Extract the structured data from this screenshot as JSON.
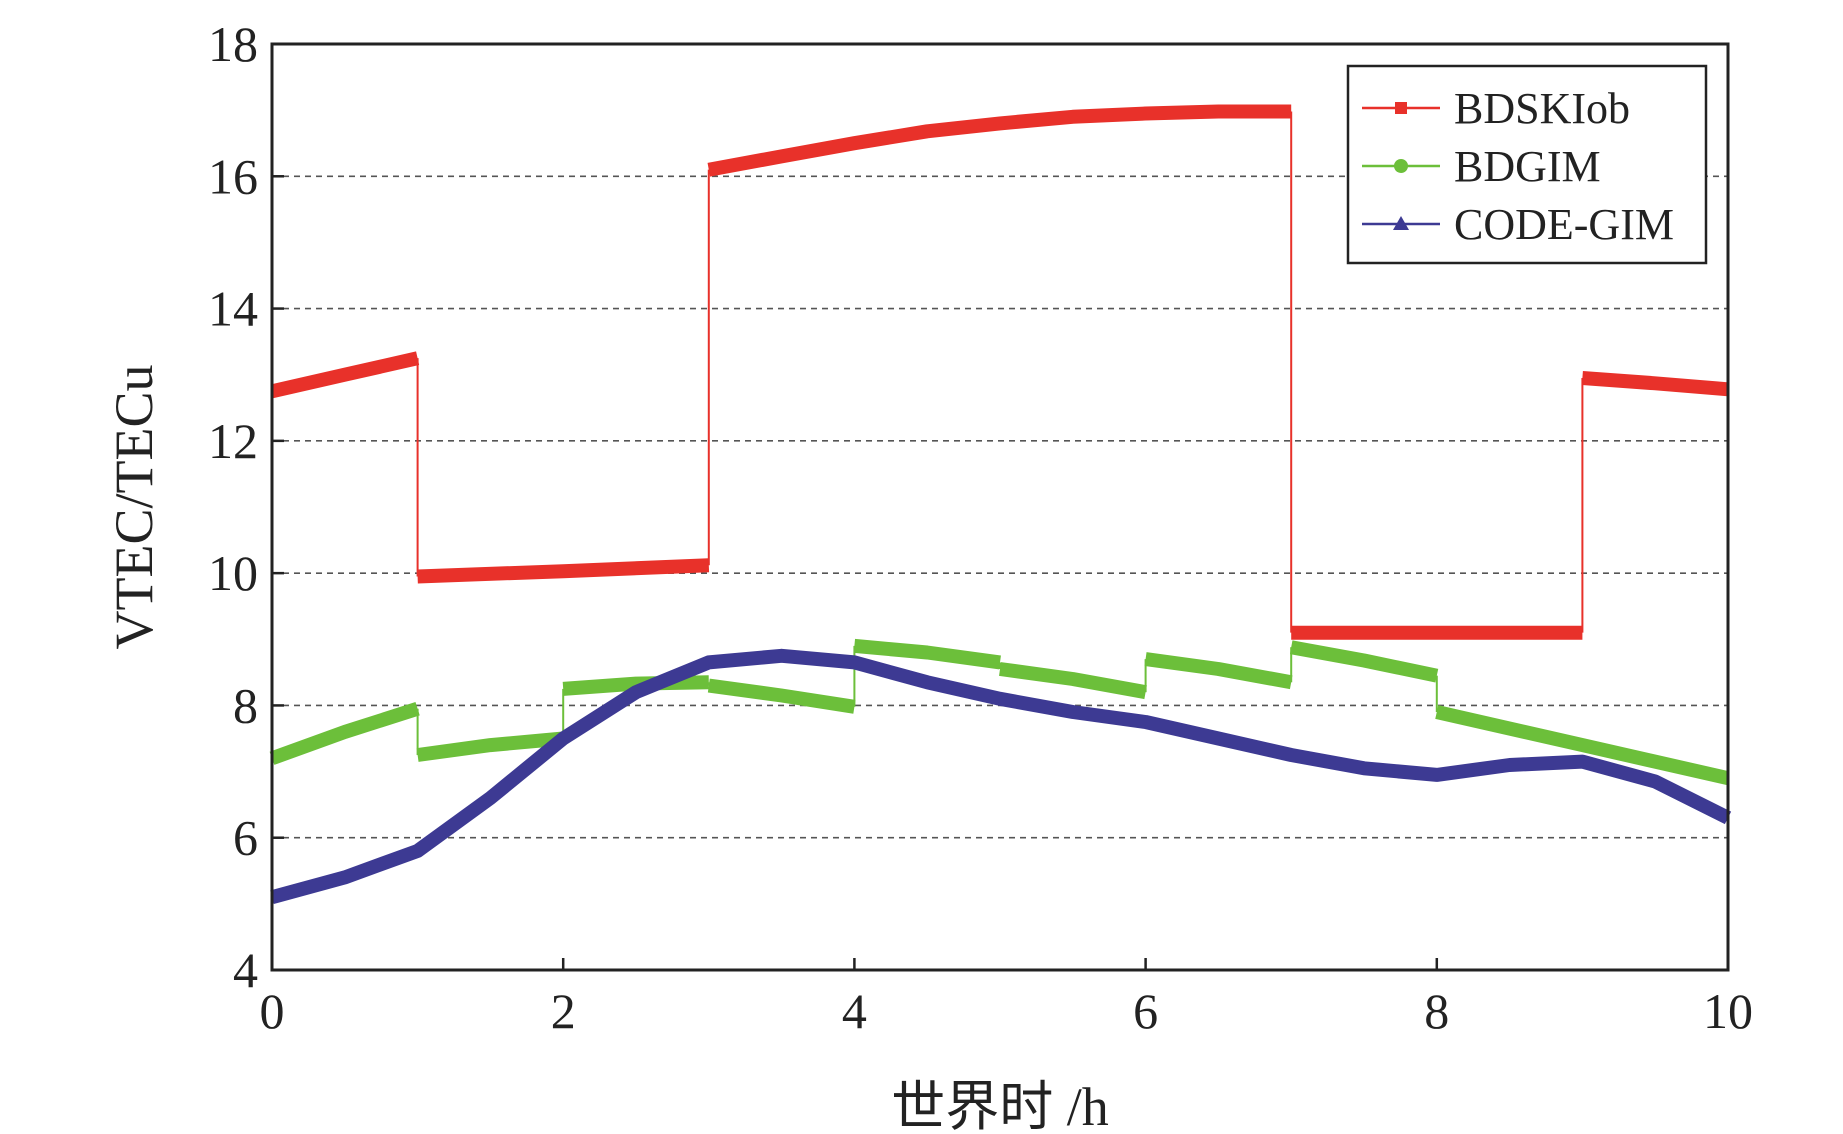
{
  "chart_data": {
    "type": "line",
    "xlabel": "世界时 /h",
    "ylabel": "VTEC/TECu",
    "xlim": [
      0,
      10
    ],
    "ylim": [
      4,
      18
    ],
    "xticks": [
      "0",
      "2",
      "4",
      "6",
      "8",
      "10"
    ],
    "yticks": [
      "4",
      "6",
      "8",
      "10",
      "12",
      "14",
      "16",
      "18"
    ],
    "grid": "horizontal dashed",
    "legend_position": "top-right",
    "series": [
      {
        "name": "BDSKIob",
        "color": "#e8312a",
        "marker": "square",
        "segments": [
          [
            [
              0,
              12.75
            ],
            [
              0.5,
              13.0
            ],
            [
              1.0,
              13.25
            ]
          ],
          [
            [
              1.0,
              9.95
            ],
            [
              2.0,
              10.03
            ],
            [
              3.0,
              10.12
            ]
          ],
          [
            [
              3.0,
              16.1
            ],
            [
              3.5,
              16.3
            ],
            [
              4.0,
              16.5
            ],
            [
              4.5,
              16.68
            ],
            [
              5.0,
              16.8
            ],
            [
              5.5,
              16.9
            ],
            [
              6.0,
              16.95
            ],
            [
              6.5,
              16.98
            ],
            [
              7.0,
              16.98
            ]
          ],
          [
            [
              7.0,
              9.1
            ],
            [
              8.0,
              9.1
            ],
            [
              9.0,
              9.1
            ]
          ],
          [
            [
              9.0,
              12.95
            ],
            [
              9.5,
              12.87
            ],
            [
              10.0,
              12.78
            ]
          ]
        ]
      },
      {
        "name": "BDGIM",
        "color": "#6cbf3a",
        "marker": "circle",
        "segments": [
          [
            [
              0,
              7.2
            ],
            [
              0.5,
              7.6
            ],
            [
              1.0,
              7.95
            ]
          ],
          [
            [
              1.0,
              7.25
            ],
            [
              1.5,
              7.4
            ],
            [
              2.0,
              7.5
            ]
          ],
          [
            [
              2.0,
              8.25
            ],
            [
              2.5,
              8.33
            ],
            [
              3.0,
              8.35
            ]
          ],
          [
            [
              3.0,
              8.3
            ],
            [
              3.5,
              8.15
            ],
            [
              4.0,
              7.98
            ]
          ],
          [
            [
              4.0,
              8.9
            ],
            [
              4.5,
              8.8
            ],
            [
              5.0,
              8.65
            ]
          ],
          [
            [
              5.0,
              8.55
            ],
            [
              5.5,
              8.4
            ],
            [
              6.0,
              8.2
            ]
          ],
          [
            [
              6.0,
              8.7
            ],
            [
              6.5,
              8.55
            ],
            [
              7.0,
              8.35
            ]
          ],
          [
            [
              7.0,
              8.88
            ],
            [
              7.5,
              8.68
            ],
            [
              8.0,
              8.45
            ]
          ],
          [
            [
              8.0,
              7.9
            ],
            [
              9.0,
              7.4
            ],
            [
              10.0,
              6.9
            ]
          ]
        ]
      },
      {
        "name": "CODE-GIM",
        "color": "#3d3a93",
        "marker": "triangle",
        "segments": [
          [
            [
              0,
              5.1
            ],
            [
              0.5,
              5.4
            ],
            [
              1.0,
              5.8
            ],
            [
              1.5,
              6.6
            ],
            [
              2.0,
              7.5
            ],
            [
              2.5,
              8.2
            ],
            [
              3.0,
              8.65
            ],
            [
              3.5,
              8.75
            ],
            [
              4.0,
              8.65
            ],
            [
              4.5,
              8.35
            ],
            [
              5.0,
              8.1
            ],
            [
              5.5,
              7.9
            ],
            [
              6.0,
              7.75
            ],
            [
              6.5,
              7.5
            ],
            [
              7.0,
              7.25
            ],
            [
              7.5,
              7.05
            ],
            [
              8.0,
              6.95
            ],
            [
              8.5,
              7.1
            ],
            [
              9.0,
              7.15
            ],
            [
              9.5,
              6.85
            ],
            [
              10.0,
              6.3
            ]
          ]
        ]
      }
    ]
  }
}
